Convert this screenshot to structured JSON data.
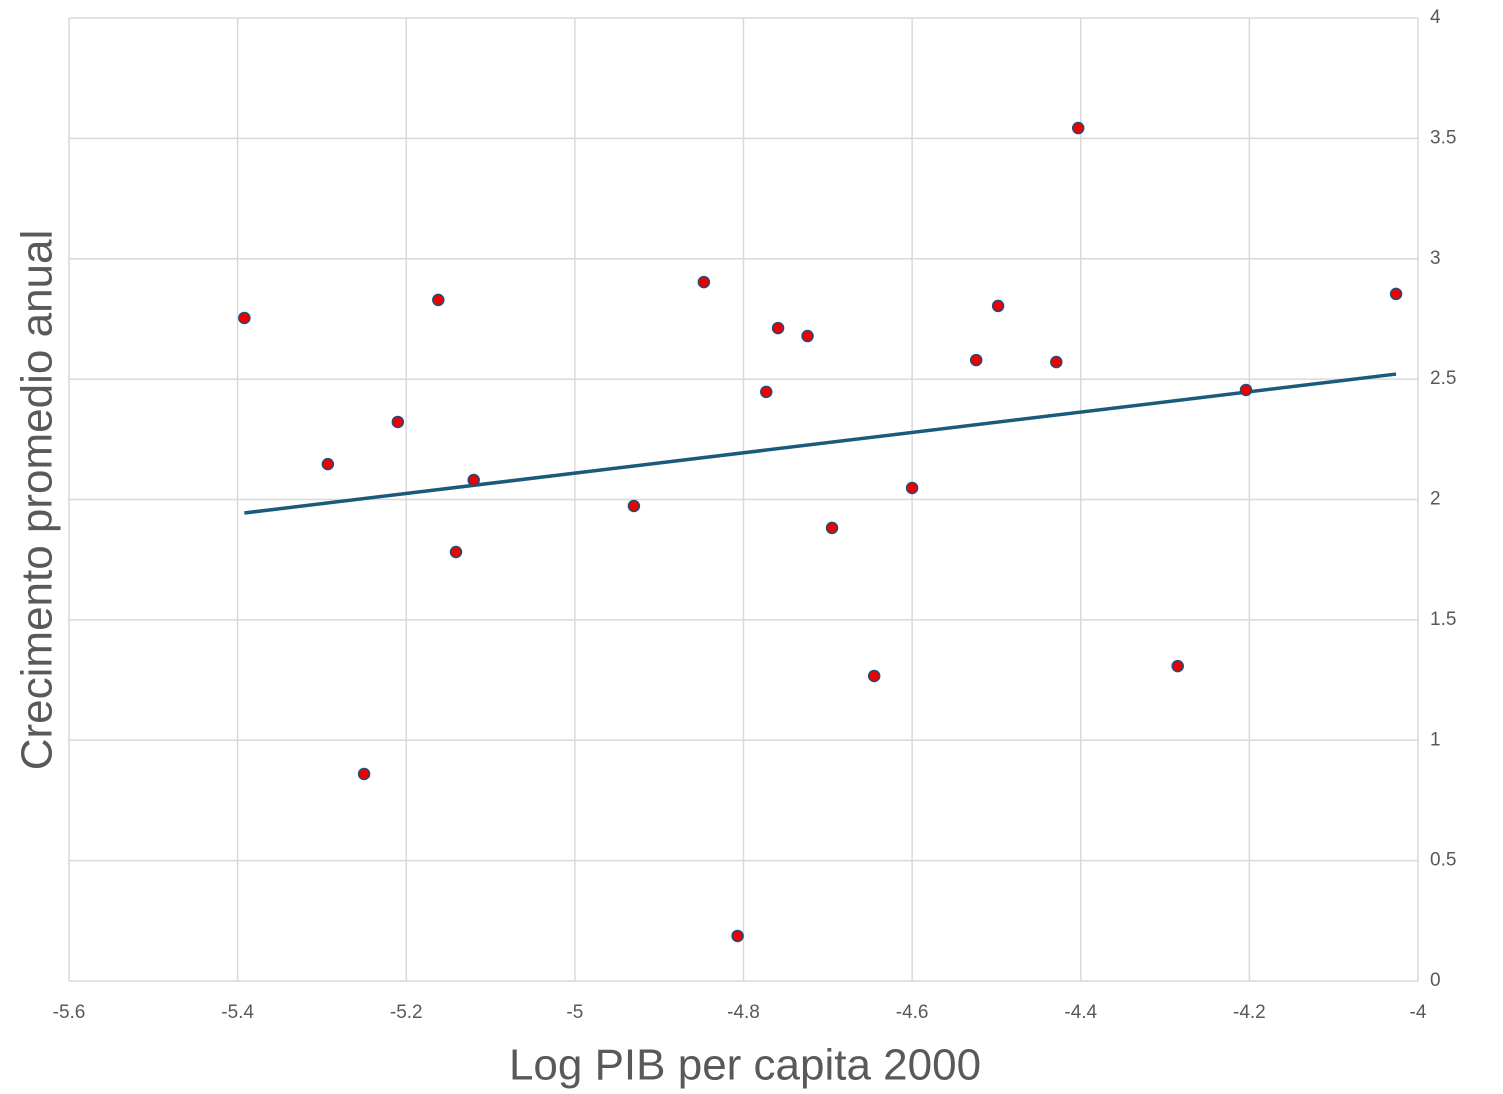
{
  "chart_data": {
    "type": "scatter",
    "x_label": "Log PIB per capita 2000",
    "y_label": "Crecimento promedio anual",
    "x": [
      -5.392,
      -5.293,
      -5.25,
      -5.21,
      -5.162,
      -5.141,
      -5.12,
      -4.93,
      -4.847,
      -4.807,
      -4.773,
      -4.759,
      -4.724,
      -4.695,
      -4.645,
      -4.6,
      -4.524,
      -4.498,
      -4.429,
      -4.403,
      -4.285,
      -4.204,
      -4.026
    ],
    "values": [
      2.754,
      2.147,
      0.86,
      2.322,
      2.829,
      1.782,
      2.081,
      1.973,
      2.903,
      0.187,
      2.447,
      2.712,
      2.679,
      1.882,
      1.267,
      2.048,
      2.579,
      2.804,
      2.571,
      3.543,
      1.308,
      2.455,
      2.854
    ],
    "color": "#ee0000",
    "edge_color": "#1f4e79",
    "trendline": {
      "x": [
        -5.392,
        -4.026
      ],
      "values": [
        1.944,
        2.521
      ],
      "color": "#1a5a7a"
    },
    "xlim": [
      -5.6,
      -4
    ],
    "xticks": [
      -5.6,
      -5.4,
      -5.2,
      -5,
      -4.8,
      -4.6,
      -4.4,
      -4.2,
      -4
    ],
    "ylim": [
      0,
      4
    ],
    "yticks": [
      0,
      0.5,
      1,
      1.5,
      2,
      2.5,
      3,
      3.5,
      4
    ],
    "y_axis_side": "right",
    "grid": true
  }
}
